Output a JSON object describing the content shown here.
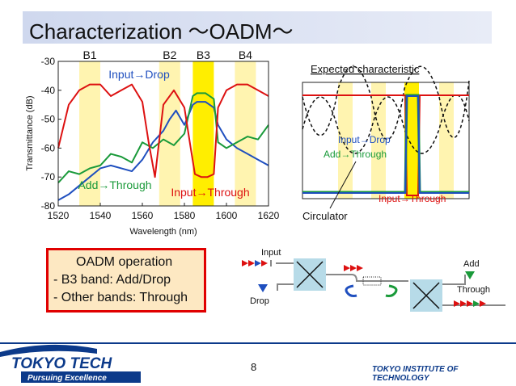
{
  "slide": {
    "title": "Characterization 〜OADM〜",
    "page_number": "8"
  },
  "chart_data": {
    "type": "line",
    "xlabel": "Wavelength (nm)",
    "ylabel": "Transmittance (dB)",
    "xlim": [
      1520,
      1620
    ],
    "ylim": [
      -80,
      -30
    ],
    "xticks": [
      "1520",
      "1540",
      "1560",
      "1580",
      "1600",
      "1620"
    ],
    "yticks": [
      "-30",
      "-40",
      "-50",
      "-60",
      "-70",
      "-80"
    ],
    "bands": [
      {
        "name": "B1",
        "from": 1530,
        "to": 1540,
        "color": "#fff4b0"
      },
      {
        "name": "B2",
        "from": 1568,
        "to": 1578,
        "color": "#fff4b0"
      },
      {
        "name": "B3",
        "from": 1584,
        "to": 1594,
        "color": "#ffee00"
      },
      {
        "name": "B4",
        "from": 1604,
        "to": 1614,
        "color": "#fff4b0"
      }
    ],
    "series": [
      {
        "name": "Input→Drop",
        "color": "#1f4fbf",
        "x": [
          1520,
          1525,
          1530,
          1535,
          1540,
          1545,
          1550,
          1555,
          1560,
          1565,
          1570,
          1573,
          1576,
          1580,
          1584,
          1586,
          1588,
          1590,
          1592,
          1594,
          1596,
          1600,
          1605,
          1610,
          1615,
          1620
        ],
        "y": [
          -78,
          -76,
          -73,
          -70,
          -67,
          -66,
          -67,
          -68,
          -64,
          -58,
          -54,
          -50,
          -47,
          -52,
          -45,
          -44,
          -44,
          -44,
          -45,
          -46,
          -52,
          -57,
          -60,
          -62,
          -64,
          -66
        ]
      },
      {
        "name": "Add→Through",
        "color": "#1a9a3a",
        "x": [
          1520,
          1525,
          1530,
          1535,
          1540,
          1545,
          1550,
          1555,
          1560,
          1565,
          1570,
          1575,
          1580,
          1584,
          1586,
          1588,
          1590,
          1592,
          1594,
          1596,
          1600,
          1605,
          1610,
          1615,
          1620
        ],
        "y": [
          -72,
          -68,
          -69,
          -67,
          -66,
          -62,
          -63,
          -65,
          -58,
          -60,
          -57,
          -59,
          -55,
          -42,
          -41,
          -41,
          -41,
          -42,
          -43,
          -58,
          -60,
          -58,
          -56,
          -57,
          -52
        ]
      },
      {
        "name": "Input→Through",
        "color": "#dd1111",
        "x": [
          1520,
          1525,
          1530,
          1535,
          1540,
          1545,
          1550,
          1555,
          1560,
          1563,
          1566,
          1570,
          1575,
          1580,
          1583,
          1585,
          1588,
          1591,
          1594,
          1596,
          1600,
          1605,
          1610,
          1615,
          1620
        ],
        "y": [
          -60,
          -45,
          -40,
          -38,
          -38,
          -42,
          -40,
          -38,
          -44,
          -58,
          -70,
          -45,
          -40,
          -46,
          -60,
          -69,
          -70,
          -70,
          -69,
          -46,
          -40,
          -38,
          -38,
          -40,
          -42
        ]
      }
    ],
    "annotations": [
      {
        "text": "Input→Drop",
        "color": "#1f4fbf"
      },
      {
        "text": "Add→Through",
        "color": "#1a9a3a"
      },
      {
        "text": "Input→Through",
        "color": "#dd1111"
      }
    ]
  },
  "expected": {
    "title": "Expected characteristic",
    "label_input_drop": "Input→Drop",
    "label_add_through": "Add→Through",
    "label_input_through": "Input→Through",
    "label_circulator": "Circulator"
  },
  "operation_box": {
    "heading": "OADM operation",
    "line1": "- B3 band: Add/Drop",
    "line2": "- Other bands: Through"
  },
  "schematic": {
    "label_input": "Input",
    "label_drop": "Drop",
    "label_add": "Add",
    "label_through": "Through"
  },
  "footer": {
    "logo_text": "TOKYO TECH",
    "logo_tagline": "Pursuing Excellence",
    "institute": "TOKYO INSTITUTE OF TECHNOLOGY",
    "colors": {
      "navy": "#0c3a8a",
      "blue": "#2b6fd1"
    }
  }
}
